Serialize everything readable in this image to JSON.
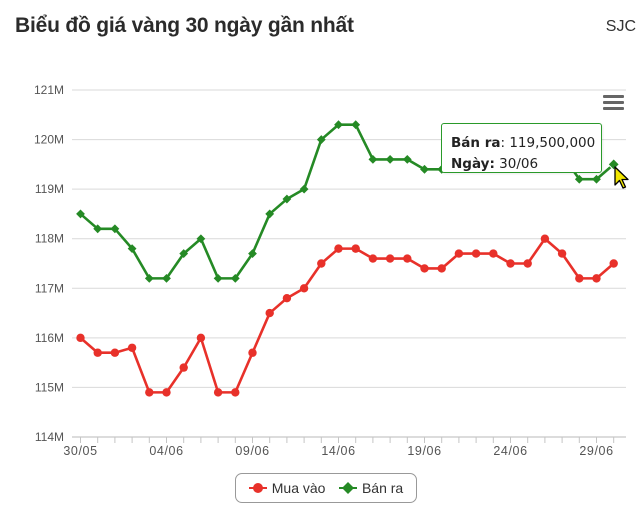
{
  "header": {
    "title": "Biểu đồ giá vàng 30 ngày gần nhất",
    "brand": "SJC"
  },
  "tooltip": {
    "label1": "Bán ra",
    "value1": ": 119,500,000",
    "label2": "Ngày:",
    "value2": " 30/06"
  },
  "icons": {
    "menu": "hamburger-menu-icon",
    "cursor": "mouse-pointer-icon"
  },
  "colors": {
    "buy": "#e8312a",
    "sell": "#258a25",
    "grid": "#d9d9d9"
  },
  "chart_data": {
    "type": "line",
    "title": "Biểu đồ giá vàng 30 ngày gần nhất",
    "xlabel": "",
    "ylabel": "",
    "ylim": [
      114,
      121
    ],
    "y_ticks": [
      "114M",
      "115M",
      "116M",
      "117M",
      "118M",
      "119M",
      "120M",
      "121M"
    ],
    "x_tick_labels": [
      "30/05",
      "04/06",
      "09/06",
      "14/06",
      "19/06",
      "24/06",
      "29/06"
    ],
    "x_tick_every": 5,
    "categories": [
      "30/05",
      "31/05",
      "01/06",
      "02/06",
      "03/06",
      "04/06",
      "05/06",
      "06/06",
      "07/06",
      "08/06",
      "09/06",
      "10/06",
      "11/06",
      "12/06",
      "13/06",
      "14/06",
      "15/06",
      "16/06",
      "17/06",
      "18/06",
      "19/06",
      "20/06",
      "21/06",
      "22/06",
      "23/06",
      "24/06",
      "25/06",
      "26/06",
      "27/06",
      "28/06",
      "29/06",
      "30/06"
    ],
    "series": [
      {
        "name": "Mua vào",
        "values": [
          116.0,
          115.7,
          115.7,
          115.8,
          114.9,
          114.9,
          115.4,
          116.0,
          114.9,
          114.9,
          115.7,
          116.5,
          116.8,
          117.0,
          117.5,
          117.8,
          117.8,
          117.6,
          117.6,
          117.6,
          117.4,
          117.4,
          117.7,
          117.7,
          117.7,
          117.5,
          117.5,
          118.0,
          117.7,
          117.2,
          117.2,
          117.5
        ]
      },
      {
        "name": "Bán ra",
        "values": [
          118.5,
          118.2,
          118.2,
          117.8,
          117.2,
          117.2,
          117.7,
          118.0,
          117.2,
          117.2,
          117.7,
          118.5,
          118.8,
          119.0,
          120.0,
          120.3,
          120.3,
          119.6,
          119.6,
          119.6,
          119.4,
          119.4,
          119.7,
          119.7,
          119.7,
          119.5,
          119.5,
          120.0,
          119.7,
          119.2,
          119.2,
          119.5
        ]
      }
    ],
    "legend": "bottom-center",
    "grid": true
  }
}
